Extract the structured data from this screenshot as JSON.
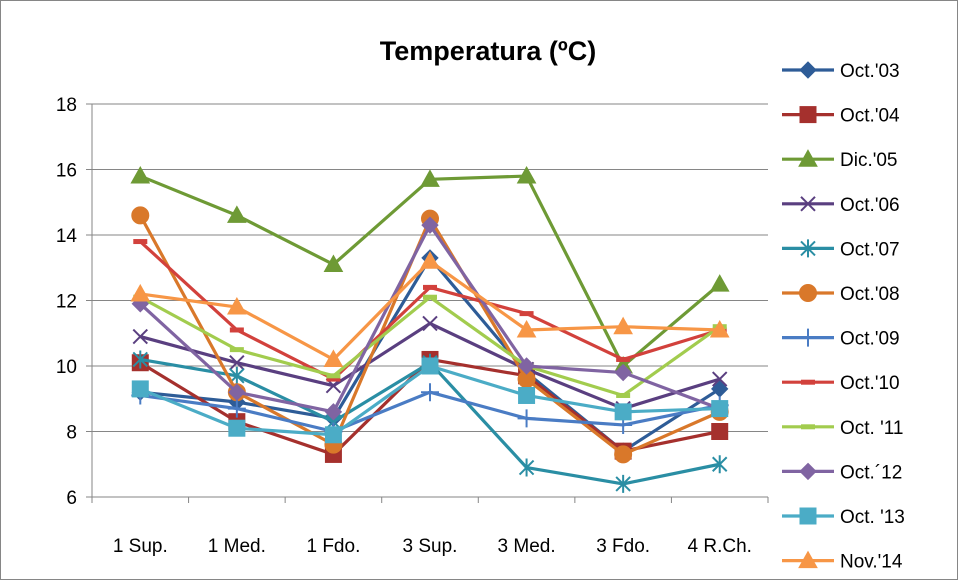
{
  "chart_data": {
    "type": "line",
    "title": "Temperatura (ºC)",
    "xlabel": "",
    "ylabel": "",
    "ylim": [
      6,
      18
    ],
    "yticks": [
      6,
      8,
      10,
      12,
      14,
      16,
      18
    ],
    "grid": "horizontal",
    "legend": "right",
    "categories": [
      "1 Sup.",
      "1 Med.",
      "1 Fdo.",
      "3 Sup.",
      "3 Med.",
      "3 Fdo.",
      "4 R.Ch."
    ],
    "series": [
      {
        "name": "Oct.'03",
        "color": "#2e5c97",
        "marker": "diamond",
        "values": [
          9.2,
          8.9,
          8.4,
          13.3,
          9.8,
          7.4,
          9.3
        ]
      },
      {
        "name": "Oct.'04",
        "color": "#a5302d",
        "marker": "square",
        "values": [
          10.1,
          8.3,
          7.3,
          10.2,
          9.7,
          7.4,
          8.0
        ]
      },
      {
        "name": "Dic.'05",
        "color": "#6e9a35",
        "marker": "triangle",
        "values": [
          15.8,
          14.6,
          13.1,
          15.7,
          15.8,
          10.0,
          12.5
        ]
      },
      {
        "name": "Oct.'06",
        "color": "#5a3f80",
        "marker": "x",
        "values": [
          10.9,
          10.1,
          9.4,
          11.3,
          9.9,
          8.7,
          9.6
        ]
      },
      {
        "name": "Oct.'07",
        "color": "#2a8ea4",
        "marker": "star",
        "values": [
          10.2,
          9.7,
          8.3,
          10.1,
          6.9,
          6.4,
          7.0
        ]
      },
      {
        "name": "Oct.'08",
        "color": "#d9782a",
        "marker": "circle",
        "values": [
          14.6,
          9.2,
          7.6,
          14.5,
          9.6,
          7.3,
          8.6
        ]
      },
      {
        "name": "Oct.'09",
        "color": "#4a7cc4",
        "marker": "plus",
        "values": [
          9.1,
          8.7,
          8.0,
          9.2,
          8.4,
          8.2,
          8.8
        ]
      },
      {
        "name": "Oct.'10",
        "color": "#d2413c",
        "marker": "dash",
        "values": [
          13.8,
          11.1,
          9.6,
          12.4,
          11.6,
          10.2,
          11.1
        ]
      },
      {
        "name": "Oct. '11",
        "color": "#a2cc4e",
        "marker": "dash",
        "values": [
          12.1,
          10.5,
          9.7,
          12.1,
          10.0,
          9.1,
          11.2
        ]
      },
      {
        "name": "Oct.´12",
        "color": "#8064a2",
        "marker": "diamond",
        "values": [
          11.9,
          9.2,
          8.6,
          14.3,
          10.0,
          9.8,
          8.7
        ]
      },
      {
        "name": "Oct. '13",
        "color": "#4bacc6",
        "marker": "square",
        "values": [
          9.3,
          8.1,
          7.9,
          10.0,
          9.1,
          8.6,
          8.7
        ]
      },
      {
        "name": "Nov.'14",
        "color": "#f79646",
        "marker": "triangle",
        "values": [
          12.2,
          11.8,
          10.2,
          13.2,
          11.1,
          11.2,
          11.1
        ]
      }
    ]
  }
}
